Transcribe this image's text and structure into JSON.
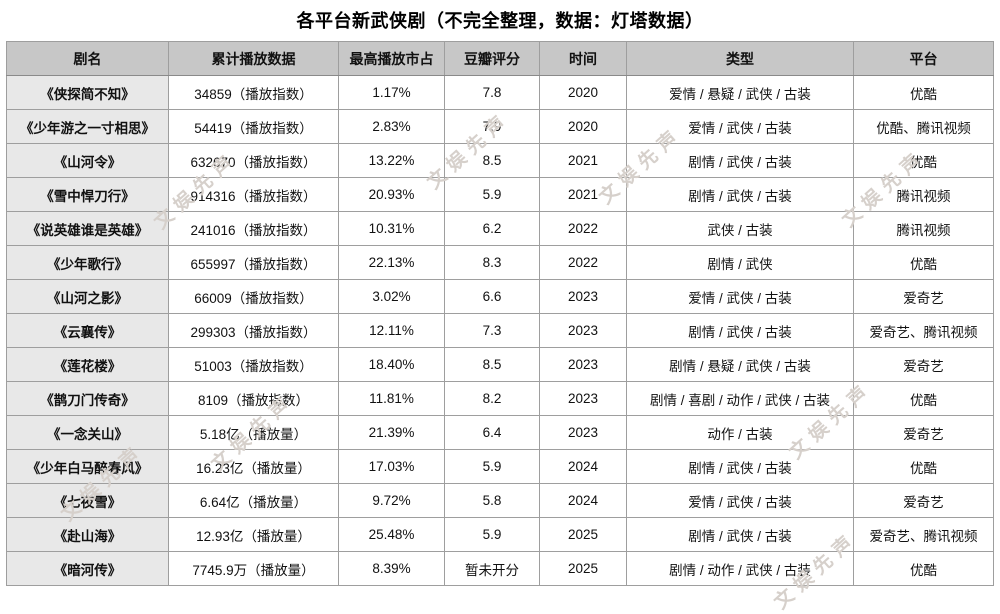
{
  "title": "各平台新武侠剧（不完全整理，数据：灯塔数据）",
  "watermark": {
    "text": "文娱先声"
  },
  "colors": {
    "header_bg": "#c7c7c7",
    "name_column_bg": "#e8e8e8",
    "border": "#9e9e9e",
    "text": "#111111",
    "watermark": "#d6d0cb"
  },
  "chart_data": {
    "type": "table",
    "title": "各平台新武侠剧（不完全整理，数据：灯塔数据）",
    "columns": [
      "剧名",
      "累计播放数据",
      "最高播放市占",
      "豆瓣评分",
      "时间",
      "类型",
      "平台"
    ],
    "column_keys": [
      "name",
      "playback",
      "market-share",
      "rating",
      "year",
      "genres",
      "platform"
    ],
    "rows": [
      [
        "《侠探简不知》",
        "34859（播放指数）",
        "1.17%",
        "7.8",
        "2020",
        "爱情 / 悬疑 / 武侠 / 古装",
        "优酷"
      ],
      [
        "《少年游之一寸相思》",
        "54419（播放指数）",
        "2.83%",
        "7.9",
        "2020",
        "爱情 / 武侠 / 古装",
        "优酷、腾讯视频"
      ],
      [
        "《山河令》",
        "632670（播放指数）",
        "13.22%",
        "8.5",
        "2021",
        "剧情 / 武侠 / 古装",
        "优酷"
      ],
      [
        "《雪中悍刀行》",
        "914316（播放指数）",
        "20.93%",
        "5.9",
        "2021",
        "剧情 / 武侠 / 古装",
        "腾讯视频"
      ],
      [
        "《说英雄谁是英雄》",
        "241016（播放指数）",
        "10.31%",
        "6.2",
        "2022",
        "武侠 / 古装",
        "腾讯视频"
      ],
      [
        "《少年歌行》",
        "655997（播放指数）",
        "22.13%",
        "8.3",
        "2022",
        "剧情 / 武侠",
        "优酷"
      ],
      [
        "《山河之影》",
        "66009（播放指数）",
        "3.02%",
        "6.6",
        "2023",
        "爱情 / 武侠 / 古装",
        "爱奇艺"
      ],
      [
        "《云襄传》",
        "299303（播放指数）",
        "12.11%",
        "7.3",
        "2023",
        "剧情 / 武侠 / 古装",
        "爱奇艺、腾讯视频"
      ],
      [
        "《莲花楼》",
        "51003（播放指数）",
        "18.40%",
        "8.5",
        "2023",
        "剧情 / 悬疑 / 武侠 / 古装",
        "爱奇艺"
      ],
      [
        "《鹊刀门传奇》",
        "8109（播放指数）",
        "11.81%",
        "8.2",
        "2023",
        "剧情 / 喜剧 / 动作 / 武侠 / 古装",
        "优酷"
      ],
      [
        "《一念关山》",
        "5.18亿（播放量）",
        "21.39%",
        "6.4",
        "2023",
        "动作 / 古装",
        "爱奇艺"
      ],
      [
        "《少年白马醉春风》",
        "16.23亿（播放量）",
        "17.03%",
        "5.9",
        "2024",
        "剧情 / 武侠 / 古装",
        "优酷"
      ],
      [
        "《七夜雪》",
        "6.64亿（播放量）",
        "9.72%",
        "5.8",
        "2024",
        "爱情 / 武侠 / 古装",
        "爱奇艺"
      ],
      [
        "《赴山海》",
        "12.93亿（播放量）",
        "25.48%",
        "5.9",
        "2025",
        "剧情 / 武侠 / 古装",
        "爱奇艺、腾讯视频"
      ],
      [
        "《暗河传》",
        "7745.9万（播放量）",
        "8.39%",
        "暂未开分",
        "2025",
        "剧情 / 动作 / 武侠 / 古装",
        "优酷"
      ]
    ]
  }
}
